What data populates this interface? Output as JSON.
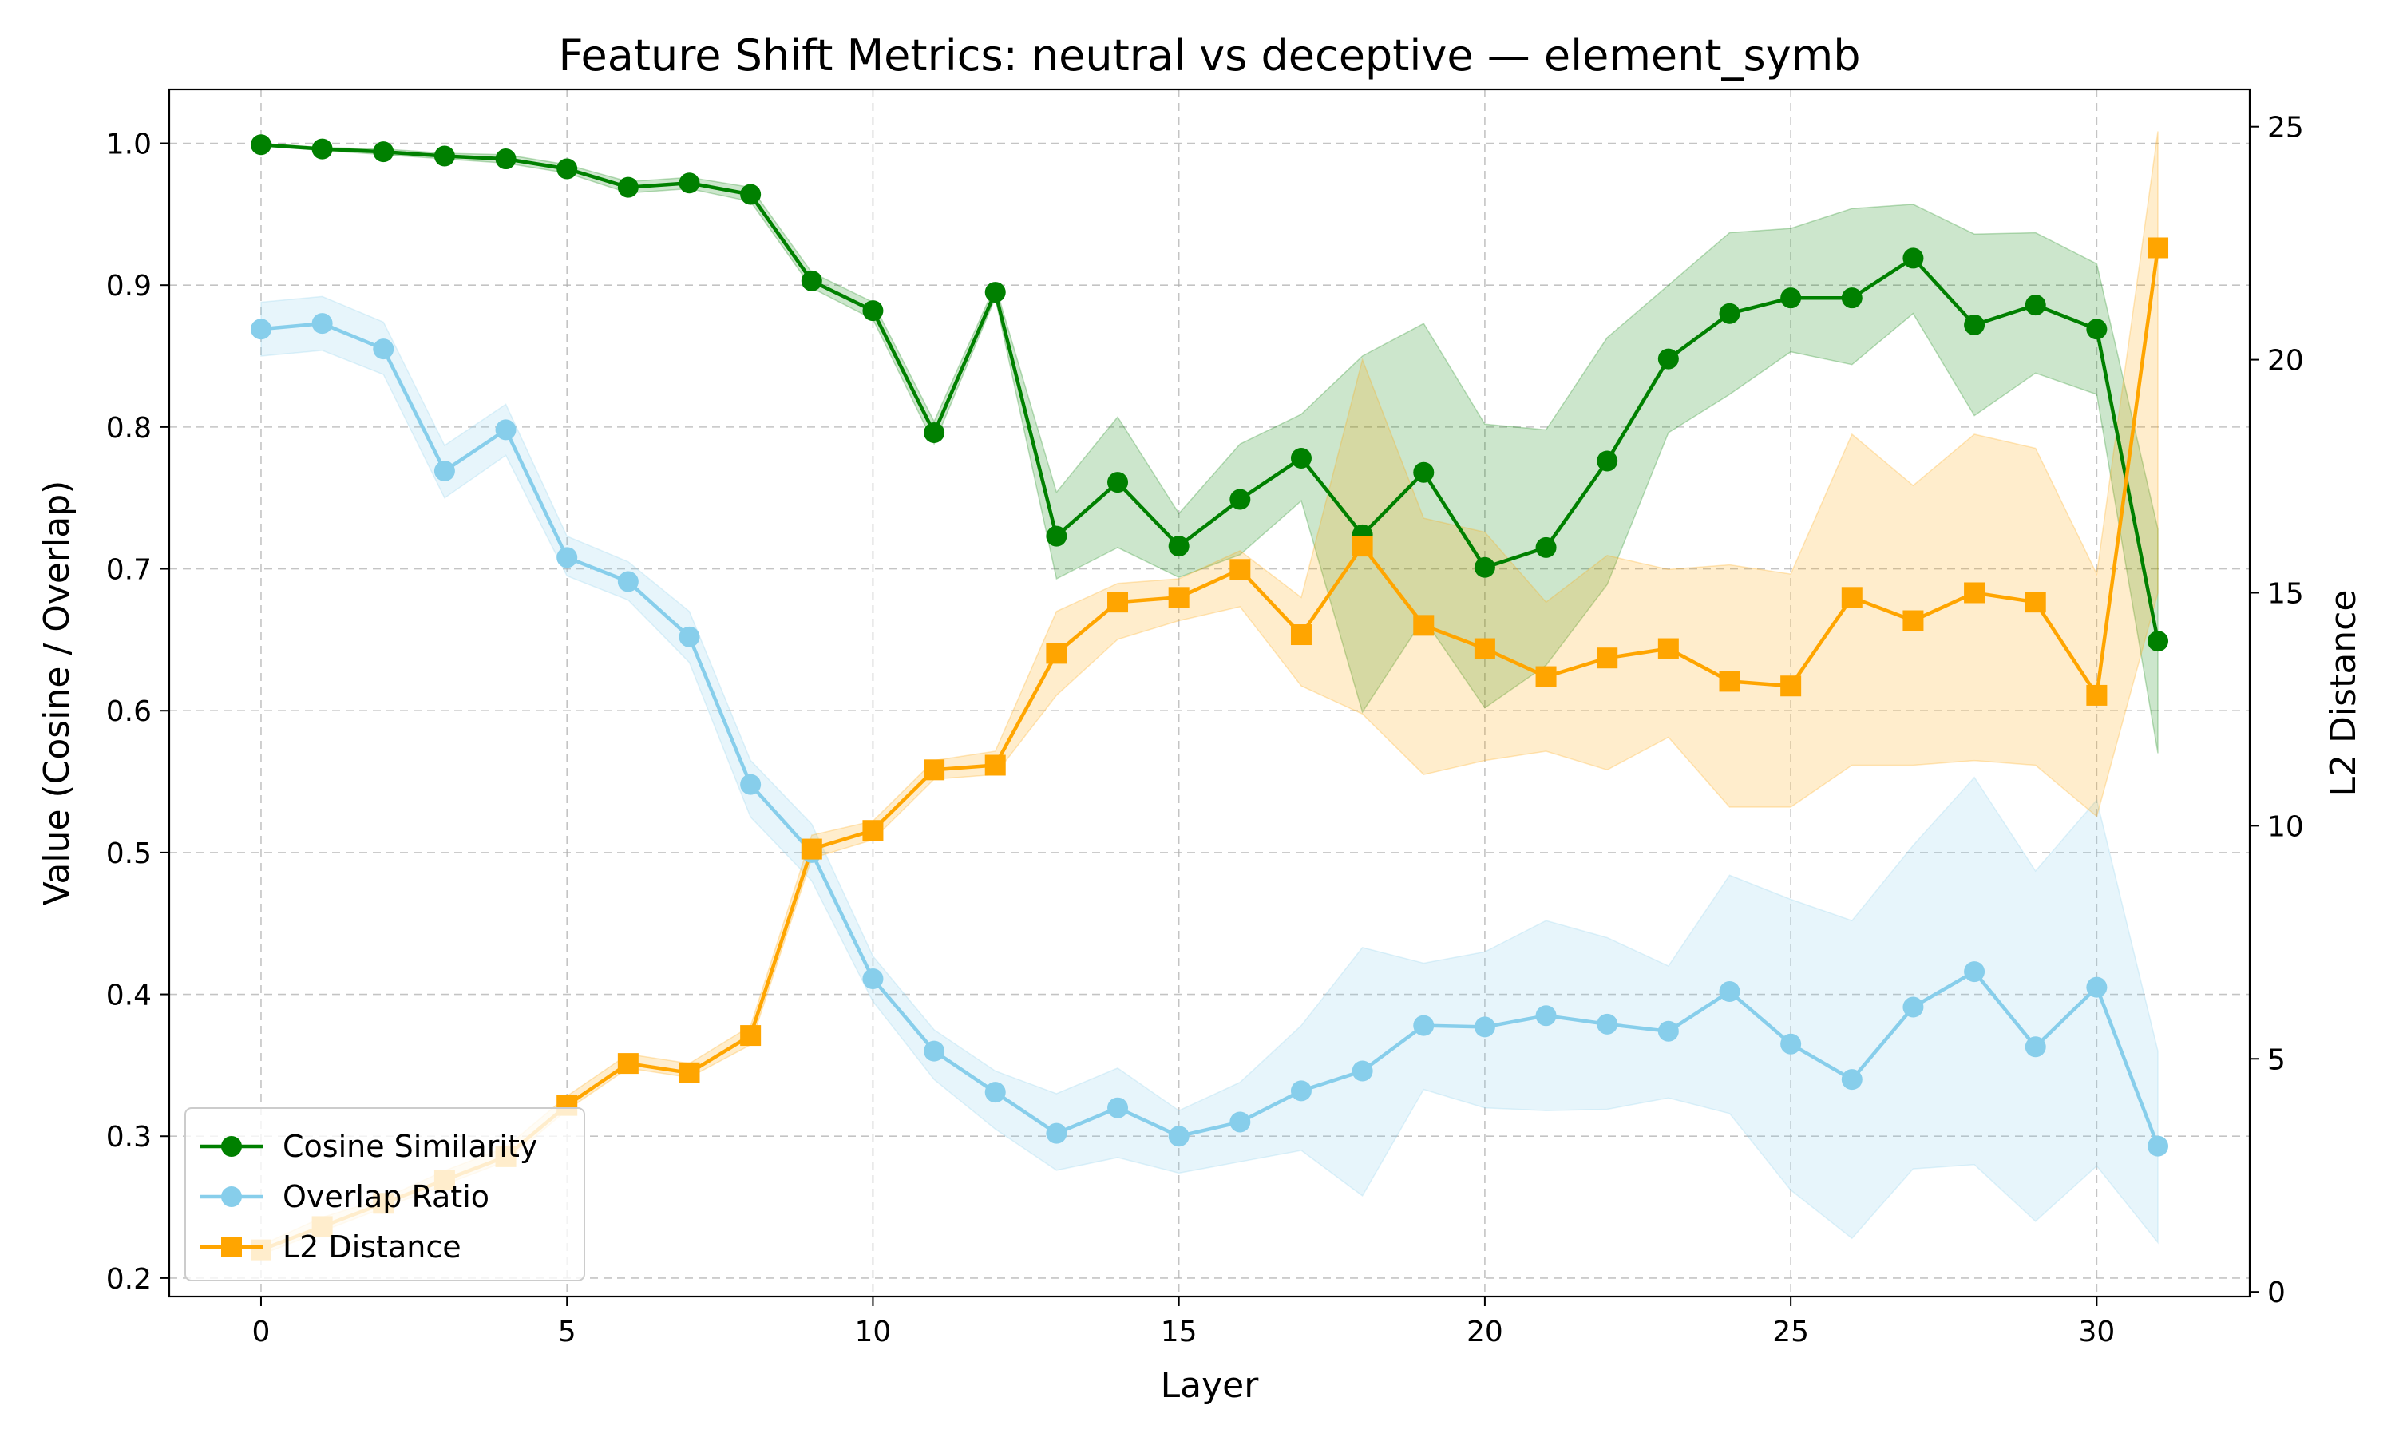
{
  "chart_data": {
    "type": "line",
    "title": "Feature Shift Metrics: neutral vs deceptive — element_symb",
    "xlabel": "Layer",
    "ylabel_left": "Value (Cosine / Overlap)",
    "ylabel_right": "L2 Distance",
    "xlim": [
      -1.5,
      32.5
    ],
    "ylim_left": [
      0.187,
      1.038
    ],
    "ylim_right": [
      -0.1,
      25.8
    ],
    "x_ticks": [
      0,
      5,
      10,
      15,
      20,
      25,
      30
    ],
    "y_ticks_left": [
      0.2,
      0.3,
      0.4,
      0.5,
      0.6,
      0.7,
      0.8,
      0.9,
      1.0
    ],
    "y_tick_labels_left": [
      "0.2",
      "0.3",
      "0.4",
      "0.5",
      "0.6",
      "0.7",
      "0.8",
      "0.9",
      "1.0"
    ],
    "y_ticks_right": [
      0,
      5,
      10,
      15,
      20,
      25
    ],
    "grid": true,
    "legend_position": "lower-left",
    "x": [
      0,
      1,
      2,
      3,
      4,
      5,
      6,
      7,
      8,
      9,
      10,
      11,
      12,
      13,
      14,
      15,
      16,
      17,
      18,
      19,
      20,
      21,
      22,
      23,
      24,
      25,
      26,
      27,
      28,
      29,
      30,
      31
    ],
    "series": [
      {
        "name": "Cosine Similarity",
        "axis": "left",
        "color": "#008000",
        "marker": "circle",
        "values": [
          0.999,
          0.996,
          0.994,
          0.991,
          0.989,
          0.982,
          0.969,
          0.972,
          0.964,
          0.903,
          0.882,
          0.796,
          0.895,
          0.723,
          0.761,
          0.716,
          0.749,
          0.778,
          0.724,
          0.768,
          0.701,
          0.715,
          0.776,
          0.848,
          0.88,
          0.891,
          0.891,
          0.919,
          0.872,
          0.886,
          0.869,
          0.649
        ],
        "lower": [
          0.998,
          0.995,
          0.992,
          0.989,
          0.986,
          0.979,
          0.965,
          0.968,
          0.959,
          0.898,
          0.876,
          0.788,
          0.891,
          0.693,
          0.715,
          0.694,
          0.71,
          0.748,
          0.599,
          0.665,
          0.602,
          0.632,
          0.689,
          0.796,
          0.823,
          0.853,
          0.844,
          0.88,
          0.808,
          0.838,
          0.823,
          0.57
        ],
        "upper": [
          1.0,
          0.997,
          0.996,
          0.993,
          0.992,
          0.985,
          0.973,
          0.976,
          0.969,
          0.909,
          0.888,
          0.804,
          0.9,
          0.754,
          0.807,
          0.739,
          0.788,
          0.809,
          0.85,
          0.873,
          0.802,
          0.798,
          0.863,
          0.9,
          0.937,
          0.94,
          0.954,
          0.957,
          0.936,
          0.937,
          0.915,
          0.728
        ]
      },
      {
        "name": "Overlap Ratio",
        "axis": "left",
        "color": "#87CEEB",
        "marker": "circle",
        "values": [
          0.869,
          0.873,
          0.855,
          0.769,
          0.798,
          0.708,
          0.691,
          0.652,
          0.548,
          0.5,
          0.411,
          0.36,
          0.331,
          0.302,
          0.32,
          0.3,
          0.31,
          0.332,
          0.346,
          0.378,
          0.377,
          0.385,
          0.379,
          0.374,
          0.402,
          0.365,
          0.34,
          0.391,
          0.416,
          0.363,
          0.405,
          0.293
        ],
        "lower": [
          0.85,
          0.854,
          0.837,
          0.75,
          0.78,
          0.695,
          0.678,
          0.634,
          0.525,
          0.48,
          0.395,
          0.34,
          0.305,
          0.276,
          0.285,
          0.274,
          0.282,
          0.29,
          0.258,
          0.333,
          0.32,
          0.318,
          0.319,
          0.327,
          0.316,
          0.262,
          0.228,
          0.277,
          0.28,
          0.24,
          0.279,
          0.225
        ],
        "upper": [
          0.888,
          0.892,
          0.874,
          0.787,
          0.816,
          0.723,
          0.705,
          0.67,
          0.565,
          0.52,
          0.427,
          0.375,
          0.346,
          0.33,
          0.348,
          0.318,
          0.338,
          0.378,
          0.433,
          0.422,
          0.43,
          0.452,
          0.44,
          0.42,
          0.484,
          0.467,
          0.452,
          0.505,
          0.553,
          0.487,
          0.537,
          0.36
        ]
      },
      {
        "name": "L2 Distance",
        "axis": "right",
        "color": "#FFA500",
        "marker": "square",
        "values": [
          0.9,
          1.4,
          1.9,
          2.4,
          2.9,
          4.0,
          4.9,
          4.7,
          5.5,
          9.5,
          9.9,
          11.2,
          11.3,
          13.7,
          14.8,
          14.9,
          15.5,
          14.1,
          16.0,
          14.3,
          13.8,
          13.2,
          13.6,
          13.8,
          13.1,
          13.0,
          14.9,
          14.4,
          15.0,
          14.8,
          12.8,
          22.4
        ],
        "lower": [
          0.8,
          1.3,
          1.8,
          2.3,
          2.8,
          3.9,
          4.8,
          4.6,
          5.3,
          9.3,
          9.7,
          11.0,
          11.1,
          12.8,
          14.0,
          14.4,
          14.7,
          13.0,
          12.4,
          11.1,
          11.4,
          11.6,
          11.2,
          11.9,
          10.4,
          10.4,
          11.3,
          11.3,
          11.4,
          11.3,
          10.2,
          15.0
        ],
        "upper": [
          1.0,
          1.6,
          2.0,
          2.6,
          3.1,
          4.2,
          5.1,
          4.9,
          5.7,
          9.8,
          10.1,
          11.4,
          11.6,
          14.6,
          15.2,
          15.3,
          15.9,
          14.9,
          20.0,
          16.6,
          16.3,
          14.8,
          15.8,
          15.5,
          15.6,
          15.4,
          18.4,
          17.3,
          18.4,
          18.1,
          15.4,
          24.9
        ]
      }
    ]
  }
}
